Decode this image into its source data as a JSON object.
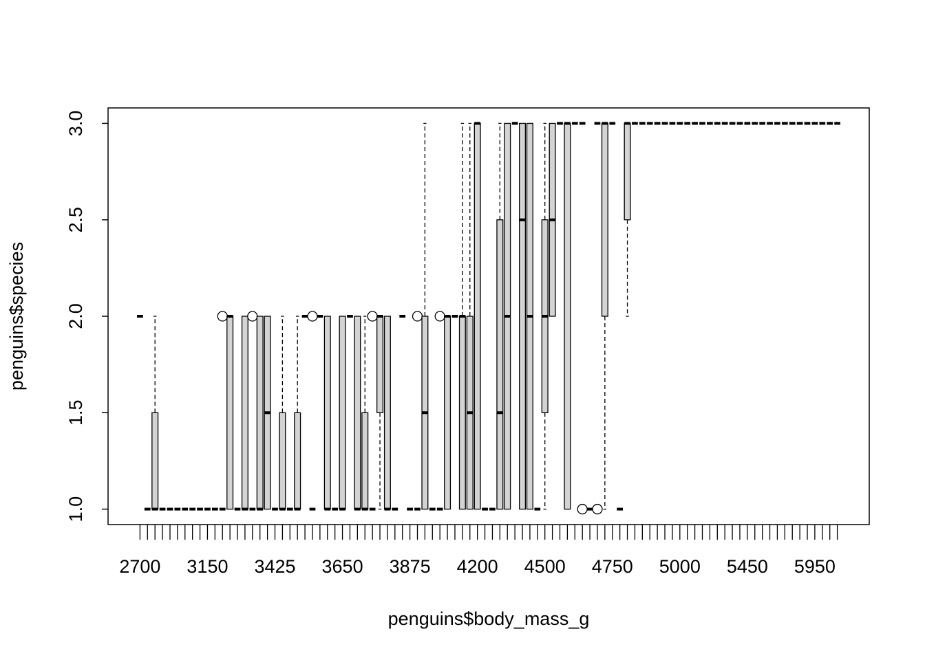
{
  "chart_data": {
    "type": "boxplot",
    "x_label": "penguins$body_mass_g",
    "y_label": "penguins$species",
    "color": "#d3d3d3",
    "ylim": [
      0.92,
      3.08
    ],
    "yticks": [
      {
        "value": 1,
        "label": "1.0"
      },
      {
        "value": 1.5,
        "label": "1.5"
      },
      {
        "value": 2,
        "label": "2.0"
      },
      {
        "value": 2.5,
        "label": "2.5"
      },
      {
        "value": 3,
        "label": "3.0"
      }
    ],
    "categories": [
      "2700",
      null,
      null,
      null,
      null,
      null,
      null,
      null,
      null,
      "3150",
      null,
      null,
      null,
      null,
      null,
      null,
      null,
      null,
      "3425",
      null,
      null,
      null,
      null,
      null,
      null,
      null,
      null,
      "3650",
      null,
      null,
      null,
      null,
      null,
      null,
      null,
      null,
      "3875",
      null,
      null,
      null,
      null,
      null,
      null,
      null,
      null,
      "4200",
      null,
      null,
      null,
      null,
      null,
      null,
      null,
      null,
      "4500",
      null,
      null,
      null,
      null,
      null,
      null,
      null,
      null,
      "4750",
      null,
      null,
      null,
      null,
      null,
      null,
      null,
      null,
      "5000",
      null,
      null,
      null,
      null,
      null,
      null,
      null,
      null,
      "5450",
      null,
      null,
      null,
      null,
      null,
      null,
      null,
      null,
      "5950",
      null,
      null,
      null
    ],
    "whisker_low": [
      2,
      1,
      1,
      1,
      1,
      1,
      1,
      1,
      1,
      1,
      1,
      1,
      1,
      1,
      1,
      1,
      1,
      1,
      1,
      1,
      1,
      1,
      2,
      1,
      2,
      1,
      1,
      1,
      2,
      1,
      1,
      1,
      1,
      1,
      1,
      2,
      1,
      1,
      1,
      1,
      1,
      1,
      2,
      1,
      1,
      1,
      1,
      1,
      1,
      1,
      3,
      1,
      1,
      1,
      1,
      2,
      3,
      1,
      3,
      3,
      1,
      3,
      1,
      3,
      1,
      2,
      3,
      3,
      3,
      3,
      3,
      3,
      3,
      3,
      3,
      3,
      3,
      3,
      3,
      3,
      3,
      3,
      3,
      3,
      3,
      3,
      3,
      3,
      3,
      3,
      3,
      3,
      3,
      3
    ],
    "q1": [
      2,
      1,
      1,
      1,
      1,
      1,
      1,
      1,
      1,
      1,
      1,
      1,
      1,
      1,
      1,
      1,
      1,
      1,
      1,
      1,
      1,
      1,
      2,
      1,
      2,
      1,
      1,
      1,
      2,
      1,
      1,
      1,
      1.5,
      1,
      1,
      2,
      1,
      1,
      1,
      1,
      1,
      1,
      2,
      1,
      1,
      1,
      1,
      1,
      1,
      1,
      3,
      1,
      1,
      1,
      1.5,
      2,
      3,
      1,
      3,
      3,
      1,
      3,
      2,
      3,
      1,
      2.5,
      3,
      3,
      3,
      3,
      3,
      3,
      3,
      3,
      3,
      3,
      3,
      3,
      3,
      3,
      3,
      3,
      3,
      3,
      3,
      3,
      3,
      3,
      3,
      3,
      3,
      3,
      3,
      3
    ],
    "median": [
      2,
      1,
      1,
      1,
      1,
      1,
      1,
      1,
      1,
      1,
      1,
      1,
      2,
      1,
      1,
      1,
      1,
      1.5,
      1,
      1,
      1,
      1,
      2,
      1,
      2,
      1,
      1,
      1,
      2,
      1,
      1,
      1,
      2,
      1,
      1,
      2,
      1,
      1,
      1.5,
      1,
      1,
      2,
      2,
      2,
      1.5,
      3,
      1,
      1,
      1.5,
      2,
      3,
      2.5,
      2,
      1,
      2,
      2.5,
      3,
      3,
      3,
      3,
      1,
      3,
      3,
      3,
      1,
      3,
      3,
      3,
      3,
      3,
      3,
      3,
      3,
      3,
      3,
      3,
      3,
      3,
      3,
      3,
      3,
      3,
      3,
      3,
      3,
      3,
      3,
      3,
      3,
      3,
      3,
      3,
      3,
      3
    ],
    "q3": [
      2,
      1,
      1.5,
      1,
      1,
      1,
      1,
      1,
      1,
      1,
      1,
      1,
      2,
      1,
      2,
      1,
      2,
      2,
      1,
      1.5,
      1,
      1.5,
      2,
      1,
      2,
      2,
      1,
      2,
      2,
      2,
      1.5,
      1,
      2,
      2,
      1,
      2,
      1,
      1,
      2,
      1,
      1,
      2,
      2,
      2,
      2,
      3,
      1,
      1,
      2.5,
      3,
      3,
      3,
      3,
      1,
      2.5,
      3,
      3,
      3,
      3,
      3,
      1,
      3,
      3,
      3,
      1,
      3,
      3,
      3,
      3,
      3,
      3,
      3,
      3,
      3,
      3,
      3,
      3,
      3,
      3,
      3,
      3,
      3,
      3,
      3,
      3,
      3,
      3,
      3,
      3,
      3,
      3,
      3,
      3,
      3
    ],
    "whisker_high": [
      2,
      1,
      2,
      1,
      1,
      1,
      1,
      1,
      1,
      1,
      1,
      1,
      2,
      1,
      2,
      1,
      2,
      2,
      1,
      2,
      1,
      2,
      2,
      1,
      2,
      2,
      1,
      2,
      2,
      2,
      2,
      1,
      2,
      2,
      1,
      2,
      1,
      1,
      3,
      1,
      1,
      2,
      2,
      3,
      3,
      3,
      1,
      1,
      3,
      3,
      3,
      3,
      3,
      1,
      3,
      3,
      3,
      3,
      3,
      3,
      1,
      3,
      3,
      3,
      1,
      3,
      3,
      3,
      3,
      3,
      3,
      3,
      3,
      3,
      3,
      3,
      3,
      3,
      3,
      3,
      3,
      3,
      3,
      3,
      3,
      3,
      3,
      3,
      3,
      3,
      3,
      3,
      3,
      3
    ],
    "outliers": [
      [],
      [],
      [],
      [],
      [],
      [],
      [],
      [],
      [],
      [],
      [],
      [
        2
      ],
      [],
      [],
      [],
      [
        2
      ],
      [],
      [],
      [],
      [],
      [],
      [],
      [],
      [
        2
      ],
      [],
      [],
      [],
      [],
      [],
      [],
      [],
      [
        2
      ],
      [],
      [],
      [],
      [],
      [],
      [
        2
      ],
      [],
      [],
      [
        2
      ],
      [],
      [],
      [],
      [],
      [],
      [],
      [],
      [],
      [],
      [],
      [],
      [],
      [],
      [],
      [],
      [],
      [],
      [],
      [
        1
      ],
      [],
      [
        1
      ],
      [],
      [],
      [],
      [],
      [],
      [],
      [],
      [],
      [],
      [],
      [],
      [],
      [],
      [],
      [],
      [],
      [],
      [],
      [],
      [],
      [],
      [],
      [],
      [],
      [],
      [],
      [],
      [],
      [],
      [],
      [],
      []
    ]
  }
}
